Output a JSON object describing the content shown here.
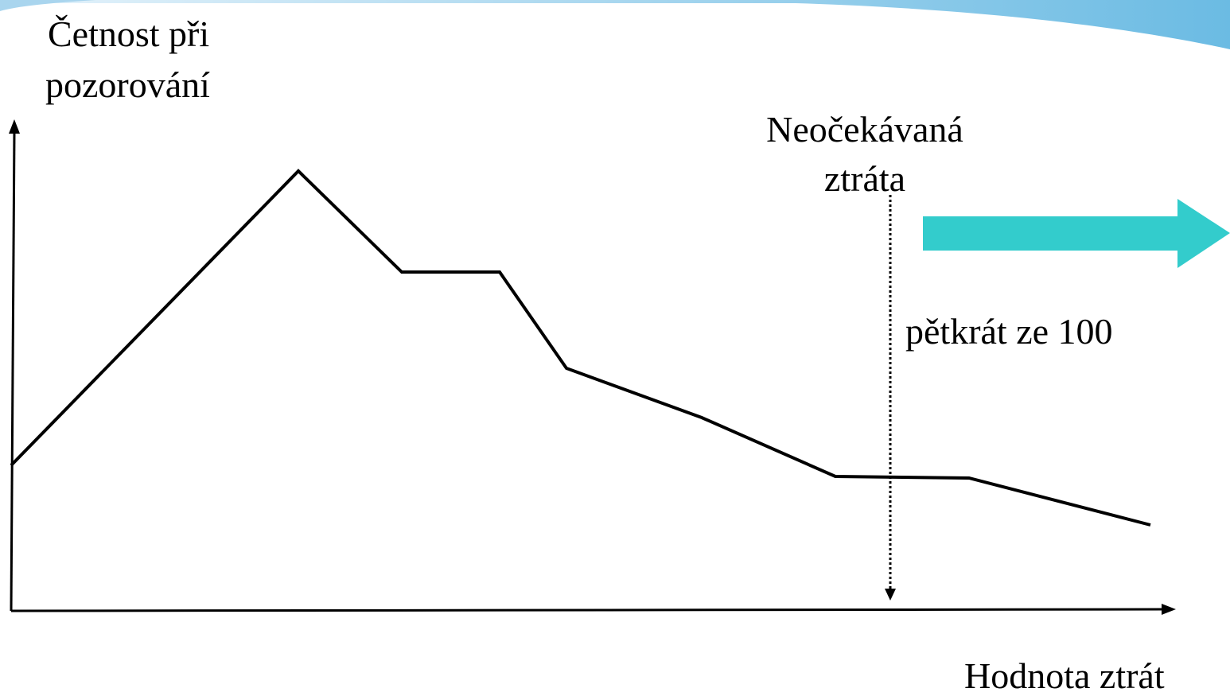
{
  "y_axis_label": [
    "Četnost při",
    "pozorování"
  ],
  "x_axis_label": "Hodnota ztrát",
  "annotation": [
    "Neočekávaná",
    "ztráta"
  ],
  "note": "pětkrát ze 100"
}
